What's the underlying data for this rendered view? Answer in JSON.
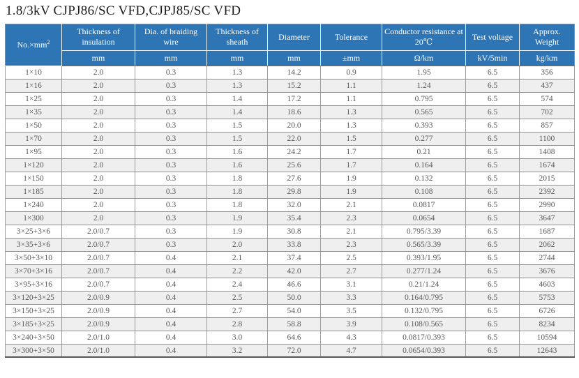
{
  "title": "1.8/3kV CJPJ86/SC VFD,CJPJ85/SC VFD",
  "colors": {
    "header_bg": "#2e75b6",
    "header_text": "#ffffff",
    "row_alt_bg": "#efefef",
    "body_text": "#595959",
    "grid": "#8f8f8f"
  },
  "table": {
    "column_keys": [
      "size",
      "insulation_thickness",
      "braiding_wire_dia",
      "sheath_thickness",
      "diameter",
      "tolerance",
      "resistance",
      "test_voltage",
      "weight"
    ],
    "columns": [
      {
        "key": "size",
        "label_base": "No.×mm",
        "label_sup": "2",
        "unit": ""
      },
      {
        "key": "insulation_thickness",
        "label": "Thickness of insulation",
        "unit": "mm"
      },
      {
        "key": "braiding_wire_dia",
        "label": "Dia. of braiding wire",
        "unit": "mm"
      },
      {
        "key": "sheath_thickness",
        "label": "Thickness of sheath",
        "unit": "mm"
      },
      {
        "key": "diameter",
        "label": "Diameter",
        "unit": "mm"
      },
      {
        "key": "tolerance",
        "label": "Tolerance",
        "unit": "±mm"
      },
      {
        "key": "resistance",
        "label": "Conductor resistance at 20℃",
        "unit": "Ω/km"
      },
      {
        "key": "test_voltage",
        "label": "Test voltage",
        "unit": "kV/5min"
      },
      {
        "key": "weight",
        "label": "Approx. Weight",
        "unit": "kg/km"
      }
    ],
    "rows": [
      [
        "1×10",
        "2.0",
        "0.3",
        "1.3",
        "14.2",
        "0.9",
        "1.95",
        "6.5",
        "356"
      ],
      [
        "1×16",
        "2.0",
        "0.3",
        "1.3",
        "15.2",
        "1.1",
        "1.24",
        "6.5",
        "437"
      ],
      [
        "1×25",
        "2.0",
        "0.3",
        "1.4",
        "17.2",
        "1.1",
        "0.795",
        "6.5",
        "574"
      ],
      [
        "1×35",
        "2.0",
        "0.3",
        "1.4",
        "18.6",
        "1.3",
        "0.565",
        "6.5",
        "702"
      ],
      [
        "1×50",
        "2.0",
        "0.3",
        "1.5",
        "20.0",
        "1.3",
        "0.393",
        "6.5",
        "857"
      ],
      [
        "1×70",
        "2.0",
        "0.3",
        "1.5",
        "22.0",
        "1.5",
        "0.277",
        "6.5",
        "1100"
      ],
      [
        "1×95",
        "2.0",
        "0.3",
        "1.6",
        "24.2",
        "1.7",
        "0.21",
        "6.5",
        "1408"
      ],
      [
        "1×120",
        "2.0",
        "0.3",
        "1.6",
        "25.6",
        "1.7",
        "0.164",
        "6.5",
        "1674"
      ],
      [
        "1×150",
        "2.0",
        "0.3",
        "1.8",
        "27.6",
        "1.9",
        "0.132",
        "6.5",
        "2015"
      ],
      [
        "1×185",
        "2.0",
        "0.3",
        "1.8",
        "29.8",
        "1.9",
        "0.108",
        "6.5",
        "2392"
      ],
      [
        "1×240",
        "2.0",
        "0.3",
        "1.8",
        "32.0",
        "2.1",
        "0.0817",
        "6.5",
        "2990"
      ],
      [
        "1×300",
        "2.0",
        "0.3",
        "1.9",
        "35.4",
        "2.3",
        "0.0654",
        "6.5",
        "3647"
      ],
      [
        "3×25+3×6",
        "2.0/0.7",
        "0.3",
        "1.9",
        "30.8",
        "2.1",
        "0.795/3.39",
        "6.5",
        "1687"
      ],
      [
        "3×35+3×6",
        "2.0/0.7",
        "0.3",
        "2.0",
        "33.8",
        "2.3",
        "0.565/3.39",
        "6.5",
        "2062"
      ],
      [
        "3×50+3×10",
        "2.0/0.7",
        "0.4",
        "2.1",
        "37.4",
        "2.5",
        "0.393/1.95",
        "6.5",
        "2744"
      ],
      [
        "3×70+3×16",
        "2.0/0.7",
        "0.4",
        "2.2",
        "42.0",
        "2.7",
        "0.277/1.24",
        "6.5",
        "3676"
      ],
      [
        "3×95+3×16",
        "2.0/0.7",
        "0.4",
        "2.4",
        "46.6",
        "3.1",
        "0.21/1.24",
        "6.5",
        "4603"
      ],
      [
        "3×120+3×25",
        "2.0/0.9",
        "0.4",
        "2.5",
        "50.0",
        "3.3",
        "0.164/0.795",
        "6.5",
        "5753"
      ],
      [
        "3×150+3×25",
        "2.0/0.9",
        "0.4",
        "2.7",
        "54.0",
        "3.5",
        "0.132/0.795",
        "6.5",
        "6726"
      ],
      [
        "3×185+3×25",
        "2.0/0.9",
        "0.4",
        "2.8",
        "58.8",
        "3.9",
        "0.108/0.565",
        "6.5",
        "8234"
      ],
      [
        "3×240+3×50",
        "2.0/1.0",
        "0.4",
        "3.0",
        "64.6",
        "4.3",
        "0.0817/0.393",
        "6.5",
        "10594"
      ],
      [
        "3×300+3×50",
        "2.0/1.0",
        "0.4",
        "3.2",
        "72.0",
        "4.7",
        "0.0654/0.393",
        "6.5",
        "12643"
      ]
    ]
  }
}
